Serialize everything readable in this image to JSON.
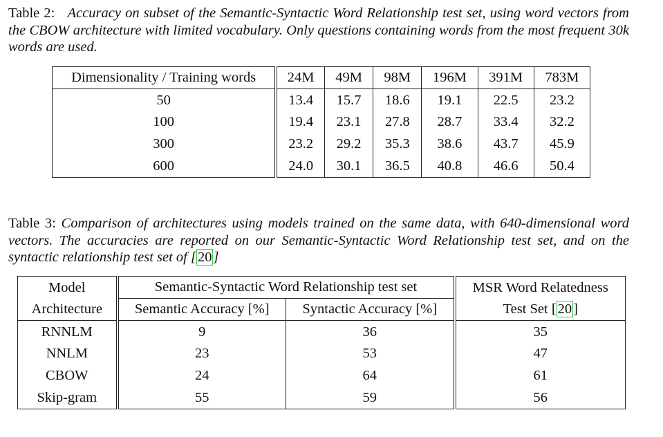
{
  "table2": {
    "label": "Table 2:",
    "caption": "Accuracy on subset of the Semantic-Syntactic Word Relationship test set, using word vectors from the CBOW architecture with limited vocabulary. Only questions containing words from the most frequent 30k words are used.",
    "header": [
      "Dimensionality / Training words",
      "24M",
      "49M",
      "98M",
      "196M",
      "391M",
      "783M"
    ],
    "rows": [
      [
        "50",
        "13.4",
        "15.7",
        "18.6",
        "19.1",
        "22.5",
        "23.2"
      ],
      [
        "100",
        "19.4",
        "23.1",
        "27.8",
        "28.7",
        "33.4",
        "32.2"
      ],
      [
        "300",
        "23.2",
        "29.2",
        "35.3",
        "38.6",
        "43.7",
        "45.9"
      ],
      [
        "600",
        "24.0",
        "30.1",
        "36.5",
        "40.8",
        "46.6",
        "50.4"
      ]
    ]
  },
  "table3": {
    "label": "Table 3:",
    "caption_before_cite": "Comparison of architectures using models trained on the same data, with 640-dimensional word vectors. The accuracies are reported on our Semantic-Syntactic Word Relationship test set, and on the syntactic relationship test set of [",
    "caption_cite": "20",
    "caption_after_cite": "]",
    "header": {
      "model_line1": "Model",
      "model_line2": "Architecture",
      "group": "Semantic-Syntactic Word Relationship test set",
      "semantic": "Semantic Accuracy [%]",
      "syntactic": "Syntactic Accuracy [%]",
      "msr_line1": "MSR Word Relatedness",
      "msr_line2_prefix": "Test Set [",
      "msr_cite": "20",
      "msr_line2_suffix": "]"
    },
    "rows": [
      [
        "RNNLM",
        "9",
        "36",
        "35"
      ],
      [
        "NNLM",
        "23",
        "53",
        "47"
      ],
      [
        "CBOW",
        "24",
        "64",
        "61"
      ],
      [
        "Skip-gram",
        "55",
        "59",
        "56"
      ]
    ]
  }
}
